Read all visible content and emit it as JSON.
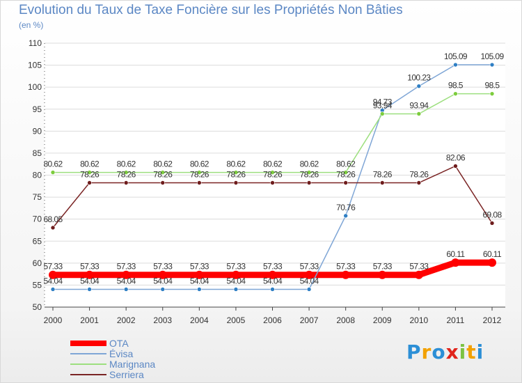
{
  "chart_data": {
    "type": "line",
    "title": "Evolution du Taux de Taxe Foncière sur les Propriétés Non Bâties",
    "unit_label": "(en %)",
    "xlabel": "",
    "ylabel": "",
    "categories": [
      "2000",
      "2001",
      "2002",
      "2003",
      "2004",
      "2005",
      "2006",
      "2007",
      "2008",
      "2009",
      "2010",
      "2011",
      "2012"
    ],
    "ylim": [
      50,
      110
    ],
    "yticks": [
      50,
      55,
      60,
      65,
      70,
      75,
      80,
      85,
      90,
      95,
      100,
      105,
      110
    ],
    "grid": true,
    "legend_position": "bottom-left",
    "series": [
      {
        "name": "OTA",
        "color": "#ff0000",
        "thick": true,
        "values": [
          57.33,
          57.33,
          57.33,
          57.33,
          57.33,
          57.33,
          57.33,
          57.33,
          57.33,
          57.33,
          57.33,
          60.11,
          60.11
        ],
        "labels": [
          "57.33",
          "57.33",
          "57.33",
          "57.33",
          "57.33",
          "57.33",
          "57.33",
          "57.33",
          "57.33",
          "57.33",
          "57.33",
          "60.11",
          "60.11"
        ]
      },
      {
        "name": "Évisa",
        "color": "#7fa6d6",
        "point_color": "#2f7fc4",
        "values": [
          54.04,
          54.04,
          54.04,
          54.04,
          54.04,
          54.04,
          54.04,
          54.04,
          70.76,
          94.73,
          100.23,
          105.09,
          105.09
        ],
        "labels": [
          "54.04",
          "54.04",
          "54.04",
          "54.04",
          "54.04",
          "54.04",
          "54.04",
          "54.04",
          "70.76",
          "94.73",
          "100.23",
          "105.09",
          "105.09"
        ]
      },
      {
        "name": "Marignana",
        "color": "#9ddf7f",
        "point_color": "#7ccc3c",
        "values": [
          80.62,
          80.62,
          80.62,
          80.62,
          80.62,
          80.62,
          80.62,
          80.62,
          80.62,
          93.94,
          93.94,
          98.5,
          98.5
        ],
        "labels": [
          "80.62",
          "80.62",
          "80.62",
          "80.62",
          "80.62",
          "80.62",
          "80.62",
          "80.62",
          "80.62",
          "93.94",
          "93.94",
          "98.5",
          "98.5"
        ]
      },
      {
        "name": "Serriera",
        "color": "#7a2424",
        "point_color": "#6e1c1c",
        "values": [
          68.05,
          78.26,
          78.26,
          78.26,
          78.26,
          78.26,
          78.26,
          78.26,
          78.26,
          78.26,
          78.26,
          82.06,
          69.08
        ],
        "labels": [
          "68.05",
          "78.26",
          "78.26",
          "78.26",
          "78.26",
          "78.26",
          "78.26",
          "78.26",
          "78.26",
          "78.26",
          "78.26",
          "82.06",
          "69.08"
        ]
      }
    ]
  },
  "logo": {
    "letters": [
      "P",
      "r",
      "o",
      "x",
      "i",
      "t",
      "i"
    ],
    "colors": [
      "#2c8fd6",
      "#f2a100",
      "#2c8fd6",
      "#e0241c",
      "#7cc242",
      "#f2a100",
      "#2c8fd6"
    ]
  }
}
